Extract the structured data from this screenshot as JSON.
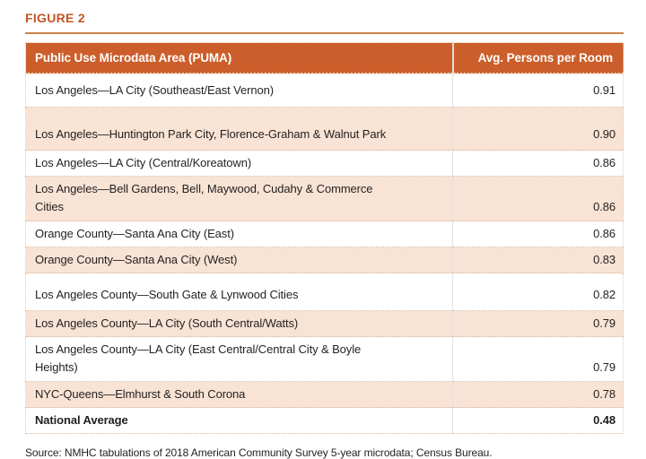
{
  "figure_label": "FIGURE 2",
  "chart_data": {
    "type": "table",
    "title": "FIGURE 2",
    "columns": [
      "Public Use Microdata Area (PUMA)",
      "Avg. Persons per Room"
    ],
    "rows": [
      {
        "area": "Los Angeles—LA City (Southeast/East Vernon)",
        "value": "0.91"
      },
      {
        "area": "Los Angeles—Huntington Park City, Florence-Graham & Walnut Park",
        "value": "0.90"
      },
      {
        "area": "Los Angeles—LA City (Central/Koreatown)",
        "value": "0.86"
      },
      {
        "area": "Los Angeles—Bell Gardens, Bell, Maywood, Cudahy & Commerce\nCities",
        "value": "0.86"
      },
      {
        "area": "Orange County—Santa Ana City (East)",
        "value": "0.86"
      },
      {
        "area": "Orange County—Santa Ana City (West)",
        "value": "0.83"
      },
      {
        "area": "Los Angeles County—South Gate & Lynwood Cities",
        "value": "0.82"
      },
      {
        "area": "Los Angeles County—LA City (South Central/Watts)",
        "value": "0.79"
      },
      {
        "area": "Los Angeles County—LA City (East Central/Central City & Boyle\nHeights)",
        "value": "0.79"
      },
      {
        "area": "NYC-Queens—Elmhurst & South Corona",
        "value": "0.78"
      },
      {
        "area": "National Average",
        "value": "0.48",
        "emphasis": true
      }
    ],
    "values_numeric": [
      0.91,
      0.9,
      0.86,
      0.86,
      0.86,
      0.83,
      0.82,
      0.79,
      0.79,
      0.78,
      0.48
    ],
    "legend": "none",
    "grid": "dotted row separators, alternating shaded rows"
  },
  "source_note": "Source: NMHC tabulations of 2018 American Community Survey 5-year microdata; Census Bureau.",
  "colors": {
    "header_background": "#cb5e2b",
    "figure_label_orange": "#c25627",
    "title_rule_orange": "#c9854f",
    "shaded_row_peach": "#f8e3d4",
    "body_text": "#231f20",
    "header_text": "#ffffff"
  }
}
